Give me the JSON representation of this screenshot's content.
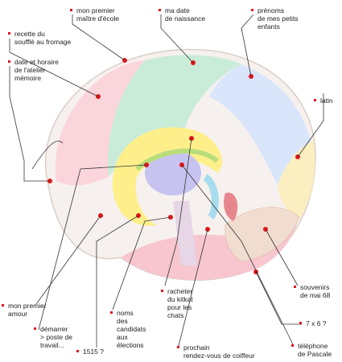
{
  "labels": [
    {
      "lines": [
        "mon premier",
        "maître d'école"
      ]
    },
    {
      "lines": [
        "ma date",
        "de naissance"
      ]
    },
    {
      "lines": [
        "prénoms",
        "de mes petits",
        "enfants"
      ]
    },
    {
      "lines": [
        "recette du",
        "soufflé au fromage"
      ]
    },
    {
      "lines": [
        "date et horaire",
        "de l'atelier",
        "mémoire"
      ]
    },
    {
      "lines": [
        "latin"
      ]
    },
    {
      "lines": [
        "mon premier",
        "amour"
      ]
    },
    {
      "lines": [
        "démarrer",
        "> poste de",
        "travail..."
      ]
    },
    {
      "lines": [
        "1515 ?"
      ]
    },
    {
      "lines": [
        "noms",
        "des",
        "candidats",
        "aux",
        "élections"
      ]
    },
    {
      "lines": [
        "racheter",
        "du kitkat",
        "pour les",
        "chats"
      ]
    },
    {
      "lines": [
        "prochain",
        "rendez-vous de coiffeur"
      ]
    },
    {
      "lines": [
        "souvenirs",
        "de mai 68"
      ]
    },
    {
      "lines": [
        "7 x 6 ?"
      ]
    },
    {
      "lines": [
        "téléphone",
        "de Pascale"
      ]
    }
  ]
}
